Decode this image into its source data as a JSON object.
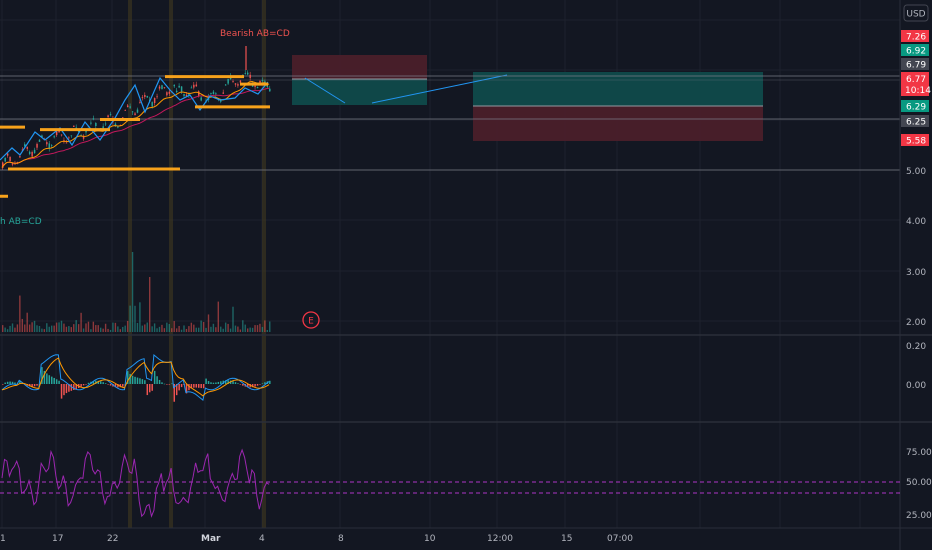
{
  "header": {
    "currency_label": "USD"
  },
  "colors": {
    "background": "#131722",
    "grid": "#1e222d",
    "orange_level": "#f7a21b",
    "candle_up": "#26a69a",
    "candle_down": "#ef5350",
    "wave_line": "#2196f3",
    "ma_red": "#c2185b",
    "macd_line": "#2196f3",
    "signal_line": "#ff9800",
    "rsi_line": "#9c27b0",
    "rsi_band": "#e040fb",
    "pattern_label": "#ef5350",
    "long_profit": "#0f4a4b",
    "long_loss": "#4a1f2a"
  },
  "chart_data": {
    "type": "candlestick",
    "price_axis": {
      "ticks": [
        "5.00",
        "4.00",
        "3.00",
        "2.00"
      ],
      "ylim": [
        1.8,
        7.5
      ]
    },
    "price_tags": [
      {
        "value": "7.26",
        "color": "#f23645"
      },
      {
        "value": "6.92",
        "color": "#089981"
      },
      {
        "value": "6.79",
        "color": "#434651"
      },
      {
        "value": "6.77",
        "color": "#f23645"
      },
      {
        "value": "10:14",
        "color": "#f23645"
      },
      {
        "value": "6.29",
        "color": "#089981"
      },
      {
        "value": "6.25",
        "color": "#434651"
      },
      {
        "value": "5.58",
        "color": "#f23645"
      }
    ],
    "macd_axis": {
      "ticks": [
        "0.20",
        "0.00"
      ]
    },
    "rsi_axis": {
      "ticks": [
        "75.00",
        "50.00",
        "25.00"
      ],
      "band_upper": 50,
      "band_lower": 40
    },
    "time_axis": {
      "ticks": [
        "1",
        "17",
        "22",
        "Mar",
        "4",
        "8",
        "10",
        "12:00",
        "15",
        "07:00"
      ]
    },
    "annotations": {
      "pattern_top": "Bearish AB=CD",
      "pattern_side": "h AB=CD",
      "earnings_marker": "E"
    },
    "levels": [
      5.85,
      6.85,
      6.25,
      5.02,
      4.48
    ]
  }
}
